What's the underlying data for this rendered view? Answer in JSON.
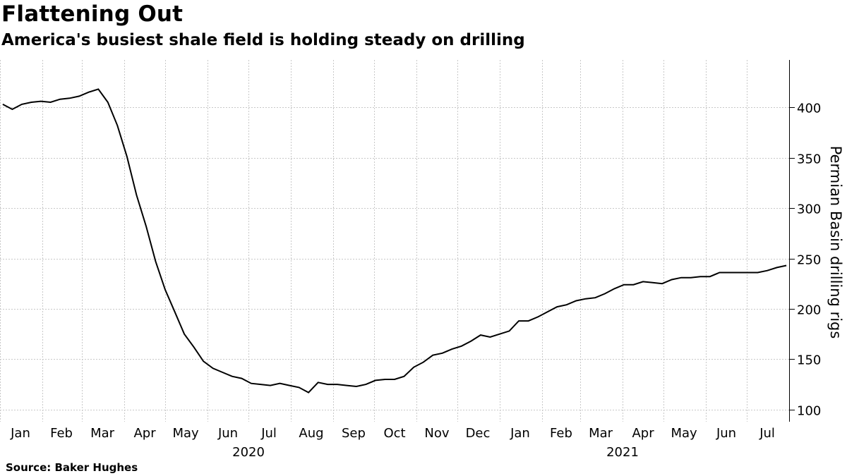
{
  "title": "Flattening Out",
  "subtitle": "America's busiest shale field is holding steady on drilling",
  "source": "Source: Baker Hughes",
  "chart_data": {
    "type": "line",
    "title": "Flattening Out",
    "subtitle": "America's busiest shale field is holding steady on drilling",
    "ylabel": "Permian Basin drilling rigs",
    "ylim": [
      88,
      447
    ],
    "yticks": [
      100,
      150,
      200,
      250,
      300,
      350,
      400
    ],
    "grid": true,
    "y_axis_position": "right",
    "x_range": [
      "2020-01-01",
      "2021-08-01"
    ],
    "month_labels": [
      {
        "label": "Jan",
        "date": "2020-01-16"
      },
      {
        "label": "Feb",
        "date": "2020-02-15"
      },
      {
        "label": "Mar",
        "date": "2020-03-16"
      },
      {
        "label": "Apr",
        "date": "2020-04-16"
      },
      {
        "label": "May",
        "date": "2020-05-16"
      },
      {
        "label": "Jun",
        "date": "2020-06-16"
      },
      {
        "label": "Jul",
        "date": "2020-07-16"
      },
      {
        "label": "Aug",
        "date": "2020-08-16"
      },
      {
        "label": "Sep",
        "date": "2020-09-16"
      },
      {
        "label": "Oct",
        "date": "2020-10-16"
      },
      {
        "label": "Nov",
        "date": "2020-11-16"
      },
      {
        "label": "Dec",
        "date": "2020-12-16"
      },
      {
        "label": "Jan",
        "date": "2021-01-16"
      },
      {
        "label": "Feb",
        "date": "2021-02-15"
      },
      {
        "label": "Mar",
        "date": "2021-03-16"
      },
      {
        "label": "Apr",
        "date": "2021-04-16"
      },
      {
        "label": "May",
        "date": "2021-05-16"
      },
      {
        "label": "Jun",
        "date": "2021-06-16"
      },
      {
        "label": "Jul",
        "date": "2021-07-16"
      }
    ],
    "year_labels": [
      {
        "label": "2020",
        "date": "2020-07-01"
      },
      {
        "label": "2021",
        "date": "2021-04-01"
      }
    ],
    "gridline_dates": [
      "2020-01-01",
      "2020-02-01",
      "2020-03-01",
      "2020-04-01",
      "2020-05-01",
      "2020-06-01",
      "2020-07-01",
      "2020-08-01",
      "2020-09-01",
      "2020-10-01",
      "2020-11-01",
      "2020-12-01",
      "2021-01-01",
      "2021-02-01",
      "2021-03-01",
      "2021-04-01",
      "2021-05-01",
      "2021-06-01",
      "2021-07-01",
      "2021-08-01"
    ],
    "series": [
      {
        "values": [
          [
            "2020-01-03",
            403
          ],
          [
            "2020-01-10",
            398
          ],
          [
            "2020-01-17",
            403
          ],
          [
            "2020-01-24",
            405
          ],
          [
            "2020-01-31",
            406
          ],
          [
            "2020-02-07",
            405
          ],
          [
            "2020-02-14",
            408
          ],
          [
            "2020-02-21",
            409
          ],
          [
            "2020-02-28",
            411
          ],
          [
            "2020-03-06",
            415
          ],
          [
            "2020-03-13",
            418
          ],
          [
            "2020-03-20",
            405
          ],
          [
            "2020-03-27",
            382
          ],
          [
            "2020-04-03",
            351
          ],
          [
            "2020-04-10",
            313
          ],
          [
            "2020-04-17",
            282
          ],
          [
            "2020-04-24",
            247
          ],
          [
            "2020-05-01",
            219
          ],
          [
            "2020-05-08",
            197
          ],
          [
            "2020-05-15",
            175
          ],
          [
            "2020-05-22",
            162
          ],
          [
            "2020-05-29",
            148
          ],
          [
            "2020-06-05",
            141
          ],
          [
            "2020-06-12",
            137
          ],
          [
            "2020-06-19",
            133
          ],
          [
            "2020-06-26",
            131
          ],
          [
            "2020-07-03",
            126
          ],
          [
            "2020-07-10",
            125
          ],
          [
            "2020-07-17",
            124
          ],
          [
            "2020-07-24",
            126
          ],
          [
            "2020-07-31",
            124
          ],
          [
            "2020-08-07",
            122
          ],
          [
            "2020-08-14",
            117
          ],
          [
            "2020-08-21",
            127
          ],
          [
            "2020-08-28",
            125
          ],
          [
            "2020-09-04",
            125
          ],
          [
            "2020-09-11",
            124
          ],
          [
            "2020-09-18",
            123
          ],
          [
            "2020-09-25",
            125
          ],
          [
            "2020-10-02",
            129
          ],
          [
            "2020-10-09",
            130
          ],
          [
            "2020-10-16",
            130
          ],
          [
            "2020-10-23",
            133
          ],
          [
            "2020-10-30",
            142
          ],
          [
            "2020-11-06",
            147
          ],
          [
            "2020-11-13",
            154
          ],
          [
            "2020-11-20",
            156
          ],
          [
            "2020-11-27",
            160
          ],
          [
            "2020-12-04",
            163
          ],
          [
            "2020-12-11",
            168
          ],
          [
            "2020-12-18",
            174
          ],
          [
            "2020-12-25",
            172
          ],
          [
            "2021-01-01",
            175
          ],
          [
            "2021-01-08",
            178
          ],
          [
            "2021-01-15",
            188
          ],
          [
            "2021-01-22",
            188
          ],
          [
            "2021-01-29",
            192
          ],
          [
            "2021-02-05",
            197
          ],
          [
            "2021-02-12",
            202
          ],
          [
            "2021-02-19",
            204
          ],
          [
            "2021-02-26",
            208
          ],
          [
            "2021-03-05",
            210
          ],
          [
            "2021-03-12",
            211
          ],
          [
            "2021-03-19",
            215
          ],
          [
            "2021-03-26",
            220
          ],
          [
            "2021-04-02",
            224
          ],
          [
            "2021-04-09",
            224
          ],
          [
            "2021-04-16",
            227
          ],
          [
            "2021-04-23",
            226
          ],
          [
            "2021-04-30",
            225
          ],
          [
            "2021-05-07",
            229
          ],
          [
            "2021-05-14",
            231
          ],
          [
            "2021-05-21",
            231
          ],
          [
            "2021-05-28",
            232
          ],
          [
            "2021-06-04",
            232
          ],
          [
            "2021-06-11",
            236
          ],
          [
            "2021-06-18",
            236
          ],
          [
            "2021-06-25",
            236
          ],
          [
            "2021-07-02",
            236
          ],
          [
            "2021-07-09",
            236
          ],
          [
            "2021-07-16",
            238
          ],
          [
            "2021-07-23",
            241
          ],
          [
            "2021-07-30",
            243
          ]
        ]
      }
    ]
  }
}
